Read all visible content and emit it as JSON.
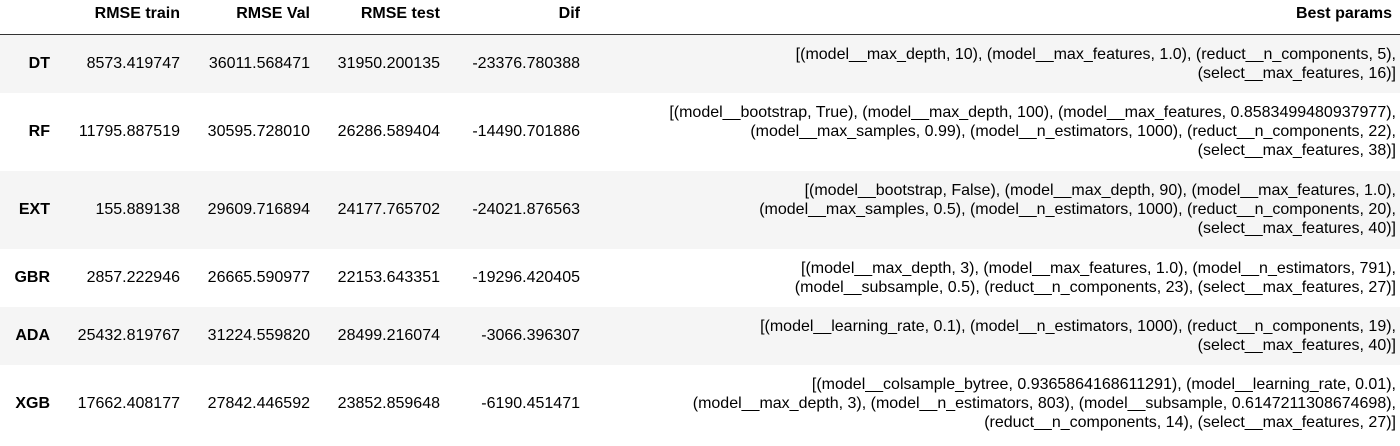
{
  "columns": {
    "index": "",
    "rmse_train": "RMSE train",
    "rmse_val": "RMSE Val",
    "rmse_test": "RMSE test",
    "dif": "Dif",
    "best_params": "Best params"
  },
  "rows": [
    {
      "model": "DT",
      "rmse_train": "8573.419747",
      "rmse_val": "36011.568471",
      "rmse_test": "31950.200135",
      "dif": "-23376.780388",
      "best_params": [
        "[(model__max_depth, 10), (model__max_features, 1.0), (reduct__n_components, 5),",
        "(select__max_features, 16)]"
      ]
    },
    {
      "model": "RF",
      "rmse_train": "11795.887519",
      "rmse_val": "30595.728010",
      "rmse_test": "26286.589404",
      "dif": "-14490.701886",
      "best_params": [
        "[(model__bootstrap, True), (model__max_depth, 100), (model__max_features, 0.8583499480937977),",
        "(model__max_samples, 0.99), (model__n_estimators, 1000), (reduct__n_components, 22),",
        "(select__max_features, 38)]"
      ]
    },
    {
      "model": "EXT",
      "rmse_train": "155.889138",
      "rmse_val": "29609.716894",
      "rmse_test": "24177.765702",
      "dif": "-24021.876563",
      "best_params": [
        "[(model__bootstrap, False), (model__max_depth, 90), (model__max_features, 1.0),",
        "(model__max_samples, 0.5), (model__n_estimators, 1000), (reduct__n_components, 20),",
        "(select__max_features, 40)]"
      ]
    },
    {
      "model": "GBR",
      "rmse_train": "2857.222946",
      "rmse_val": "26665.590977",
      "rmse_test": "22153.643351",
      "dif": "-19296.420405",
      "best_params": [
        "[(model__max_depth, 3), (model__max_features, 1.0), (model__n_estimators, 791),",
        "(model__subsample, 0.5), (reduct__n_components, 23), (select__max_features, 27)]"
      ]
    },
    {
      "model": "ADA",
      "rmse_train": "25432.819767",
      "rmse_val": "31224.559820",
      "rmse_test": "28499.216074",
      "dif": "-3066.396307",
      "best_params": [
        "[(model__learning_rate, 0.1), (model__n_estimators, 1000), (reduct__n_components, 19),",
        "(select__max_features, 40)]"
      ]
    },
    {
      "model": "XGB",
      "rmse_train": "17662.408177",
      "rmse_val": "27842.446592",
      "rmse_test": "23852.859648",
      "dif": "-6190.451471",
      "best_params": [
        "[(model__colsample_bytree, 0.9365864168611291), (model__learning_rate, 0.01),",
        "(model__max_depth, 3), (model__n_estimators, 803), (model__subsample, 0.6147211308674698),",
        "(reduct__n_components, 14), (select__max_features, 27)]"
      ]
    }
  ]
}
